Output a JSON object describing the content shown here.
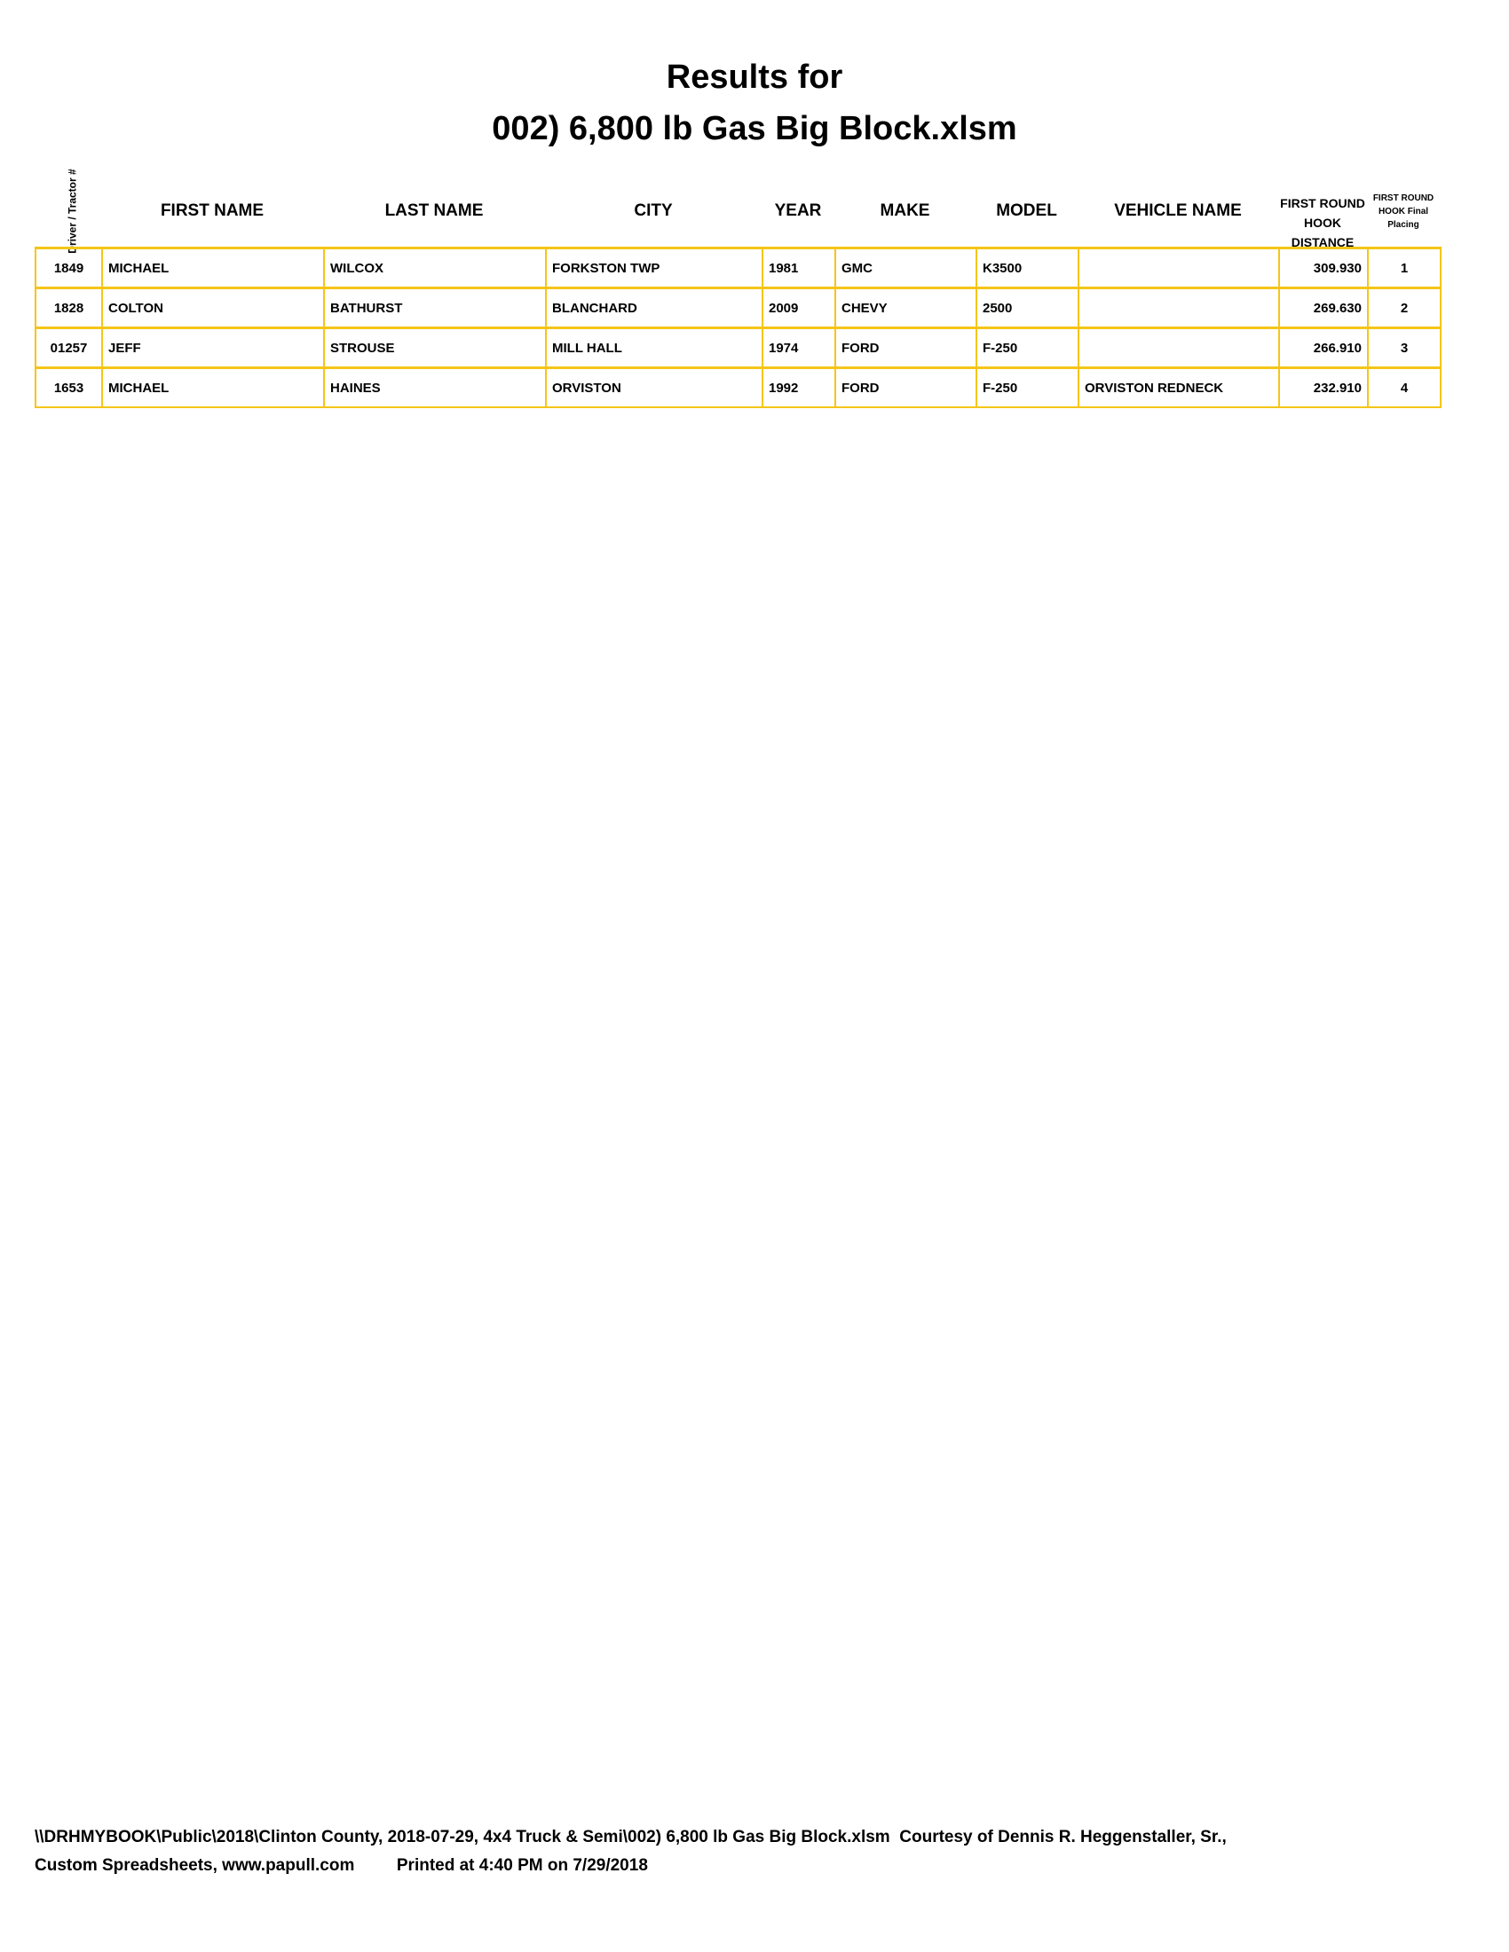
{
  "title": {
    "line1": "Results for",
    "line2": "002) 6,800 lb Gas Big Block.xlsm"
  },
  "headers": {
    "driver": "Driver / Tractor #",
    "first_name": "FIRST NAME",
    "last_name": "LAST NAME",
    "city": "CITY",
    "year": "YEAR",
    "make": "MAKE",
    "model": "MODEL",
    "vehicle_name": "VEHICLE NAME",
    "distance": "FIRST ROUND HOOK DISTANCE",
    "placing": "FIRST ROUND HOOK Final Placing"
  },
  "rows": [
    {
      "driver": "1849",
      "first_name": "MICHAEL",
      "last_name": "WILCOX",
      "city": "FORKSTON TWP",
      "year": "1981",
      "make": "GMC",
      "model": "K3500",
      "vehicle_name": "",
      "distance": "309.930",
      "placing": "1"
    },
    {
      "driver": "1828",
      "first_name": "COLTON",
      "last_name": "BATHURST",
      "city": "BLANCHARD",
      "year": "2009",
      "make": "CHEVY",
      "model": "2500",
      "vehicle_name": "",
      "distance": "269.630",
      "placing": "2"
    },
    {
      "driver": "01257",
      "first_name": "JEFF",
      "last_name": "STROUSE",
      "city": "MILL HALL",
      "year": "1974",
      "make": "FORD",
      "model": "F-250",
      "vehicle_name": "",
      "distance": "266.910",
      "placing": "3"
    },
    {
      "driver": "1653",
      "first_name": "MICHAEL",
      "last_name": "HAINES",
      "city": "ORVISTON",
      "year": "1992",
      "make": "FORD",
      "model": "F-250",
      "vehicle_name": "ORVISTON REDNECK",
      "distance": "232.910",
      "placing": "4"
    }
  ],
  "footer": {
    "line1": "\\\\DRHMYBOOK\\Public\\2018\\Clinton County, 2018-07-29, 4x4 Truck & Semi\\002) 6,800 lb Gas Big Block.xlsm  Courtesy of Dennis R. Heggenstaller, Sr.,",
    "line2": "Custom Spreadsheets, www.papull.com         Printed at 4:40 PM on 7/29/2018"
  },
  "colors": {
    "grid": "#f5c518"
  }
}
